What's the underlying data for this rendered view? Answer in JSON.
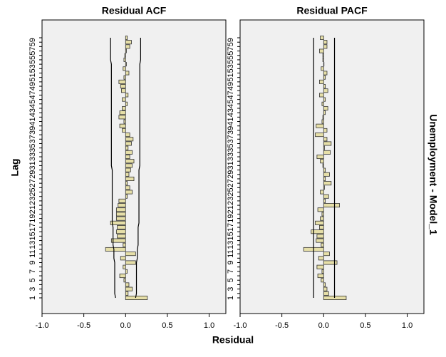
{
  "page": {
    "ylabel": "Lag",
    "xlabel": "Residual",
    "side_label": "Unemployment - Model_1"
  },
  "chart_data": [
    {
      "type": "bar",
      "title": "Residual ACF",
      "color": "#e6dfa8",
      "categories": [
        "1",
        null,
        "3",
        null,
        "5",
        null,
        "7",
        null,
        "9",
        null,
        "11",
        null,
        "13",
        null,
        "15",
        null,
        "17",
        null,
        "19",
        null,
        "21",
        null,
        "23",
        null,
        "25",
        null,
        "27",
        null,
        "29",
        null,
        "31",
        null,
        "33",
        null,
        "35",
        null,
        "37",
        null,
        "39",
        null,
        "41",
        null,
        "43",
        null,
        "45",
        null,
        "47",
        null,
        "49",
        null,
        "51",
        null,
        "53",
        null,
        "55",
        null,
        "57",
        null,
        "59",
        null
      ],
      "values": [
        0.26,
        0.03,
        0.08,
        0.04,
        -0.02,
        -0.07,
        0.02,
        -0.03,
        0.12,
        -0.06,
        0.12,
        -0.24,
        -0.03,
        -0.17,
        -0.1,
        -0.11,
        -0.1,
        -0.18,
        -0.11,
        -0.11,
        -0.11,
        -0.09,
        -0.08,
        0.02,
        0.08,
        0.05,
        0.02,
        0.1,
        0.04,
        0.06,
        0.08,
        0.1,
        0.05,
        0.08,
        0.03,
        0.07,
        0.09,
        0.05,
        -0.04,
        -0.07,
        -0.02,
        -0.08,
        -0.07,
        -0.04,
        0.02,
        -0.04,
        0.03,
        -0.05,
        -0.06,
        -0.08,
        -0.02,
        0.04,
        -0.03,
        0.01,
        -0.02,
        -0.01,
        0.01,
        0.05,
        0.07,
        0.02
      ],
      "upper_limit": [
        0.12,
        0.13,
        0.13,
        0.13,
        0.13,
        0.13,
        0.13,
        0.13,
        0.13,
        0.14,
        0.14,
        0.14,
        0.15,
        0.15,
        0.15,
        0.15,
        0.15,
        0.16,
        0.16,
        0.16,
        0.16,
        0.16,
        0.16,
        0.16,
        0.16,
        0.16,
        0.16,
        0.16,
        0.16,
        0.16,
        0.17,
        0.17,
        0.17,
        0.17,
        0.17,
        0.17,
        0.17,
        0.17,
        0.17,
        0.17,
        0.17,
        0.17,
        0.17,
        0.17,
        0.17,
        0.17,
        0.17,
        0.17,
        0.17,
        0.17,
        0.17,
        0.17,
        0.17,
        0.17,
        0.18,
        0.18,
        0.18,
        0.18,
        0.18,
        0.18
      ],
      "lower_limit": [
        -0.12,
        -0.13,
        -0.13,
        -0.13,
        -0.13,
        -0.13,
        -0.13,
        -0.13,
        -0.13,
        -0.14,
        -0.14,
        -0.14,
        -0.15,
        -0.15,
        -0.15,
        -0.15,
        -0.15,
        -0.16,
        -0.16,
        -0.16,
        -0.16,
        -0.16,
        -0.16,
        -0.16,
        -0.16,
        -0.16,
        -0.16,
        -0.16,
        -0.16,
        -0.16,
        -0.17,
        -0.17,
        -0.17,
        -0.17,
        -0.17,
        -0.17,
        -0.17,
        -0.17,
        -0.17,
        -0.17,
        -0.17,
        -0.17,
        -0.17,
        -0.17,
        -0.17,
        -0.17,
        -0.17,
        -0.17,
        -0.17,
        -0.17,
        -0.17,
        -0.17,
        -0.17,
        -0.17,
        -0.18,
        -0.18,
        -0.18,
        -0.18,
        -0.18,
        -0.18
      ],
      "xlim": [
        -1,
        1.2
      ],
      "xticks": [
        {
          "value": -1,
          "label": "-1.0"
        },
        -0.5,
        {
          "value": 0,
          "label": "0.0"
        },
        0.5,
        {
          "value": 1,
          "label": "1.0"
        }
      ]
    },
    {
      "type": "bar",
      "title": "Residual PACF",
      "color": "#e6dfa8",
      "categories": [
        "1",
        null,
        "3",
        null,
        "5",
        null,
        "7",
        null,
        "9",
        null,
        "11",
        null,
        "13",
        null,
        "15",
        null,
        "17",
        null,
        "19",
        null,
        "21",
        null,
        "23",
        null,
        "25",
        null,
        "27",
        null,
        "29",
        null,
        "31",
        null,
        "33",
        null,
        "35",
        null,
        "37",
        null,
        "39",
        null,
        "41",
        null,
        "43",
        null,
        "45",
        null,
        "47",
        null,
        "49",
        null,
        "51",
        null,
        "53",
        null,
        "55",
        null,
        "57",
        null,
        "59",
        null
      ],
      "values": [
        0.27,
        0.06,
        0.04,
        0.02,
        -0.03,
        -0.07,
        -0.02,
        -0.08,
        0.16,
        -0.06,
        0.07,
        -0.24,
        -0.03,
        -0.09,
        -0.08,
        -0.15,
        -0.05,
        -0.1,
        -0.04,
        -0.02,
        -0.07,
        0.19,
        0.02,
        0.06,
        -0.04,
        0.01,
        0.09,
        0.02,
        0.07,
        0.02,
        -0.01,
        -0.04,
        -0.08,
        0.08,
        0.01,
        0.09,
        0.04,
        -0.1,
        0.04,
        -0.09,
        -0.02,
        -0.01,
        0.02,
        0.05,
        -0.02,
        0.02,
        -0.05,
        0.05,
        0.02,
        -0.05,
        0.02,
        0.04,
        -0.03,
        0.0,
        -0.01,
        -0.01,
        -0.05,
        0.04,
        0.04,
        -0.04
      ],
      "upper_limit": 0.13,
      "lower_limit": -0.12,
      "xlim": [
        -1,
        1.2
      ],
      "xticks": [
        {
          "value": -1,
          "label": "-1.0"
        },
        -0.5,
        {
          "value": 0,
          "label": "0.0"
        },
        0.5,
        {
          "value": 1,
          "label": "1.0"
        }
      ]
    }
  ]
}
